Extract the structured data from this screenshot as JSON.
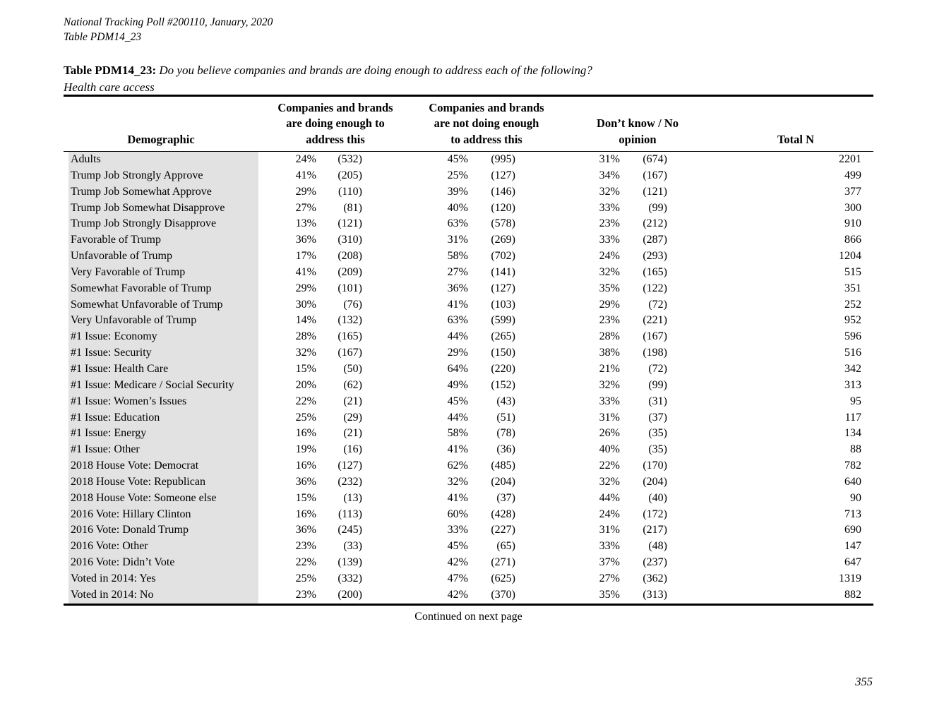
{
  "document": {
    "poll_line": "National Tracking Poll #200110, January, 2020",
    "table_line": "Table PDM14_23",
    "title_bold": "Table PDM14_23:",
    "title_question": "Do you believe companies and brands are doing enough to address each of the following?",
    "title_subject": "Health care access",
    "continued_note": "Continued on next page",
    "page_number": "355"
  },
  "table": {
    "headers": {
      "demographic": "Demographic",
      "doing_enough": "Companies and brands\nare doing enough to\naddress this",
      "not_doing_enough": "Companies and brands\nare not doing enough\nto address this",
      "dont_know": "Don’t know / No\nopinion",
      "total_n": "Total N"
    },
    "rows": [
      {
        "label": "Adults",
        "pct1": "24%",
        "n1": "(532)",
        "pct2": "45%",
        "n2": "(995)",
        "pct3": "31%",
        "n3": "(674)",
        "total": "2201"
      },
      {
        "label": "Trump Job Strongly Approve",
        "pct1": "41%",
        "n1": "(205)",
        "pct2": "25%",
        "n2": "(127)",
        "pct3": "34%",
        "n3": "(167)",
        "total": "499"
      },
      {
        "label": "Trump Job Somewhat Approve",
        "pct1": "29%",
        "n1": "(110)",
        "pct2": "39%",
        "n2": "(146)",
        "pct3": "32%",
        "n3": "(121)",
        "total": "377"
      },
      {
        "label": "Trump Job Somewhat Disapprove",
        "pct1": "27%",
        "n1": "(81)",
        "pct2": "40%",
        "n2": "(120)",
        "pct3": "33%",
        "n3": "(99)",
        "total": "300"
      },
      {
        "label": "Trump Job Strongly Disapprove",
        "pct1": "13%",
        "n1": "(121)",
        "pct2": "63%",
        "n2": "(578)",
        "pct3": "23%",
        "n3": "(212)",
        "total": "910"
      },
      {
        "label": "Favorable of Trump",
        "pct1": "36%",
        "n1": "(310)",
        "pct2": "31%",
        "n2": "(269)",
        "pct3": "33%",
        "n3": "(287)",
        "total": "866"
      },
      {
        "label": "Unfavorable of Trump",
        "pct1": "17%",
        "n1": "(208)",
        "pct2": "58%",
        "n2": "(702)",
        "pct3": "24%",
        "n3": "(293)",
        "total": "1204"
      },
      {
        "label": "Very Favorable of Trump",
        "pct1": "41%",
        "n1": "(209)",
        "pct2": "27%",
        "n2": "(141)",
        "pct3": "32%",
        "n3": "(165)",
        "total": "515"
      },
      {
        "label": "Somewhat Favorable of Trump",
        "pct1": "29%",
        "n1": "(101)",
        "pct2": "36%",
        "n2": "(127)",
        "pct3": "35%",
        "n3": "(122)",
        "total": "351"
      },
      {
        "label": "Somewhat Unfavorable of Trump",
        "pct1": "30%",
        "n1": "(76)",
        "pct2": "41%",
        "n2": "(103)",
        "pct3": "29%",
        "n3": "(72)",
        "total": "252"
      },
      {
        "label": "Very Unfavorable of Trump",
        "pct1": "14%",
        "n1": "(132)",
        "pct2": "63%",
        "n2": "(599)",
        "pct3": "23%",
        "n3": "(221)",
        "total": "952"
      },
      {
        "label": "#1 Issue: Economy",
        "pct1": "28%",
        "n1": "(165)",
        "pct2": "44%",
        "n2": "(265)",
        "pct3": "28%",
        "n3": "(167)",
        "total": "596"
      },
      {
        "label": "#1 Issue: Security",
        "pct1": "32%",
        "n1": "(167)",
        "pct2": "29%",
        "n2": "(150)",
        "pct3": "38%",
        "n3": "(198)",
        "total": "516"
      },
      {
        "label": "#1 Issue: Health Care",
        "pct1": "15%",
        "n1": "(50)",
        "pct2": "64%",
        "n2": "(220)",
        "pct3": "21%",
        "n3": "(72)",
        "total": "342"
      },
      {
        "label": "#1 Issue: Medicare / Social Security",
        "pct1": "20%",
        "n1": "(62)",
        "pct2": "49%",
        "n2": "(152)",
        "pct3": "32%",
        "n3": "(99)",
        "total": "313"
      },
      {
        "label": "#1 Issue: Women’s Issues",
        "pct1": "22%",
        "n1": "(21)",
        "pct2": "45%",
        "n2": "(43)",
        "pct3": "33%",
        "n3": "(31)",
        "total": "95"
      },
      {
        "label": "#1 Issue: Education",
        "pct1": "25%",
        "n1": "(29)",
        "pct2": "44%",
        "n2": "(51)",
        "pct3": "31%",
        "n3": "(37)",
        "total": "117"
      },
      {
        "label": "#1 Issue: Energy",
        "pct1": "16%",
        "n1": "(21)",
        "pct2": "58%",
        "n2": "(78)",
        "pct3": "26%",
        "n3": "(35)",
        "total": "134"
      },
      {
        "label": "#1 Issue: Other",
        "pct1": "19%",
        "n1": "(16)",
        "pct2": "41%",
        "n2": "(36)",
        "pct3": "40%",
        "n3": "(35)",
        "total": "88"
      },
      {
        "label": "2018 House Vote: Democrat",
        "pct1": "16%",
        "n1": "(127)",
        "pct2": "62%",
        "n2": "(485)",
        "pct3": "22%",
        "n3": "(170)",
        "total": "782"
      },
      {
        "label": "2018 House Vote: Republican",
        "pct1": "36%",
        "n1": "(232)",
        "pct2": "32%",
        "n2": "(204)",
        "pct3": "32%",
        "n3": "(204)",
        "total": "640"
      },
      {
        "label": "2018 House Vote: Someone else",
        "pct1": "15%",
        "n1": "(13)",
        "pct2": "41%",
        "n2": "(37)",
        "pct3": "44%",
        "n3": "(40)",
        "total": "90"
      },
      {
        "label": "2016 Vote: Hillary Clinton",
        "pct1": "16%",
        "n1": "(113)",
        "pct2": "60%",
        "n2": "(428)",
        "pct3": "24%",
        "n3": "(172)",
        "total": "713"
      },
      {
        "label": "2016 Vote: Donald Trump",
        "pct1": "36%",
        "n1": "(245)",
        "pct2": "33%",
        "n2": "(227)",
        "pct3": "31%",
        "n3": "(217)",
        "total": "690"
      },
      {
        "label": "2016 Vote: Other",
        "pct1": "23%",
        "n1": "(33)",
        "pct2": "45%",
        "n2": "(65)",
        "pct3": "33%",
        "n3": "(48)",
        "total": "147"
      },
      {
        "label": "2016 Vote: Didn’t Vote",
        "pct1": "22%",
        "n1": "(139)",
        "pct2": "42%",
        "n2": "(271)",
        "pct3": "37%",
        "n3": "(237)",
        "total": "647"
      },
      {
        "label": "Voted in 2014: Yes",
        "pct1": "25%",
        "n1": "(332)",
        "pct2": "47%",
        "n2": "(625)",
        "pct3": "27%",
        "n3": "(362)",
        "total": "1319"
      },
      {
        "label": "Voted in 2014: No",
        "pct1": "23%",
        "n1": "(200)",
        "pct2": "42%",
        "n2": "(370)",
        "pct3": "35%",
        "n3": "(313)",
        "total": "882"
      }
    ]
  }
}
